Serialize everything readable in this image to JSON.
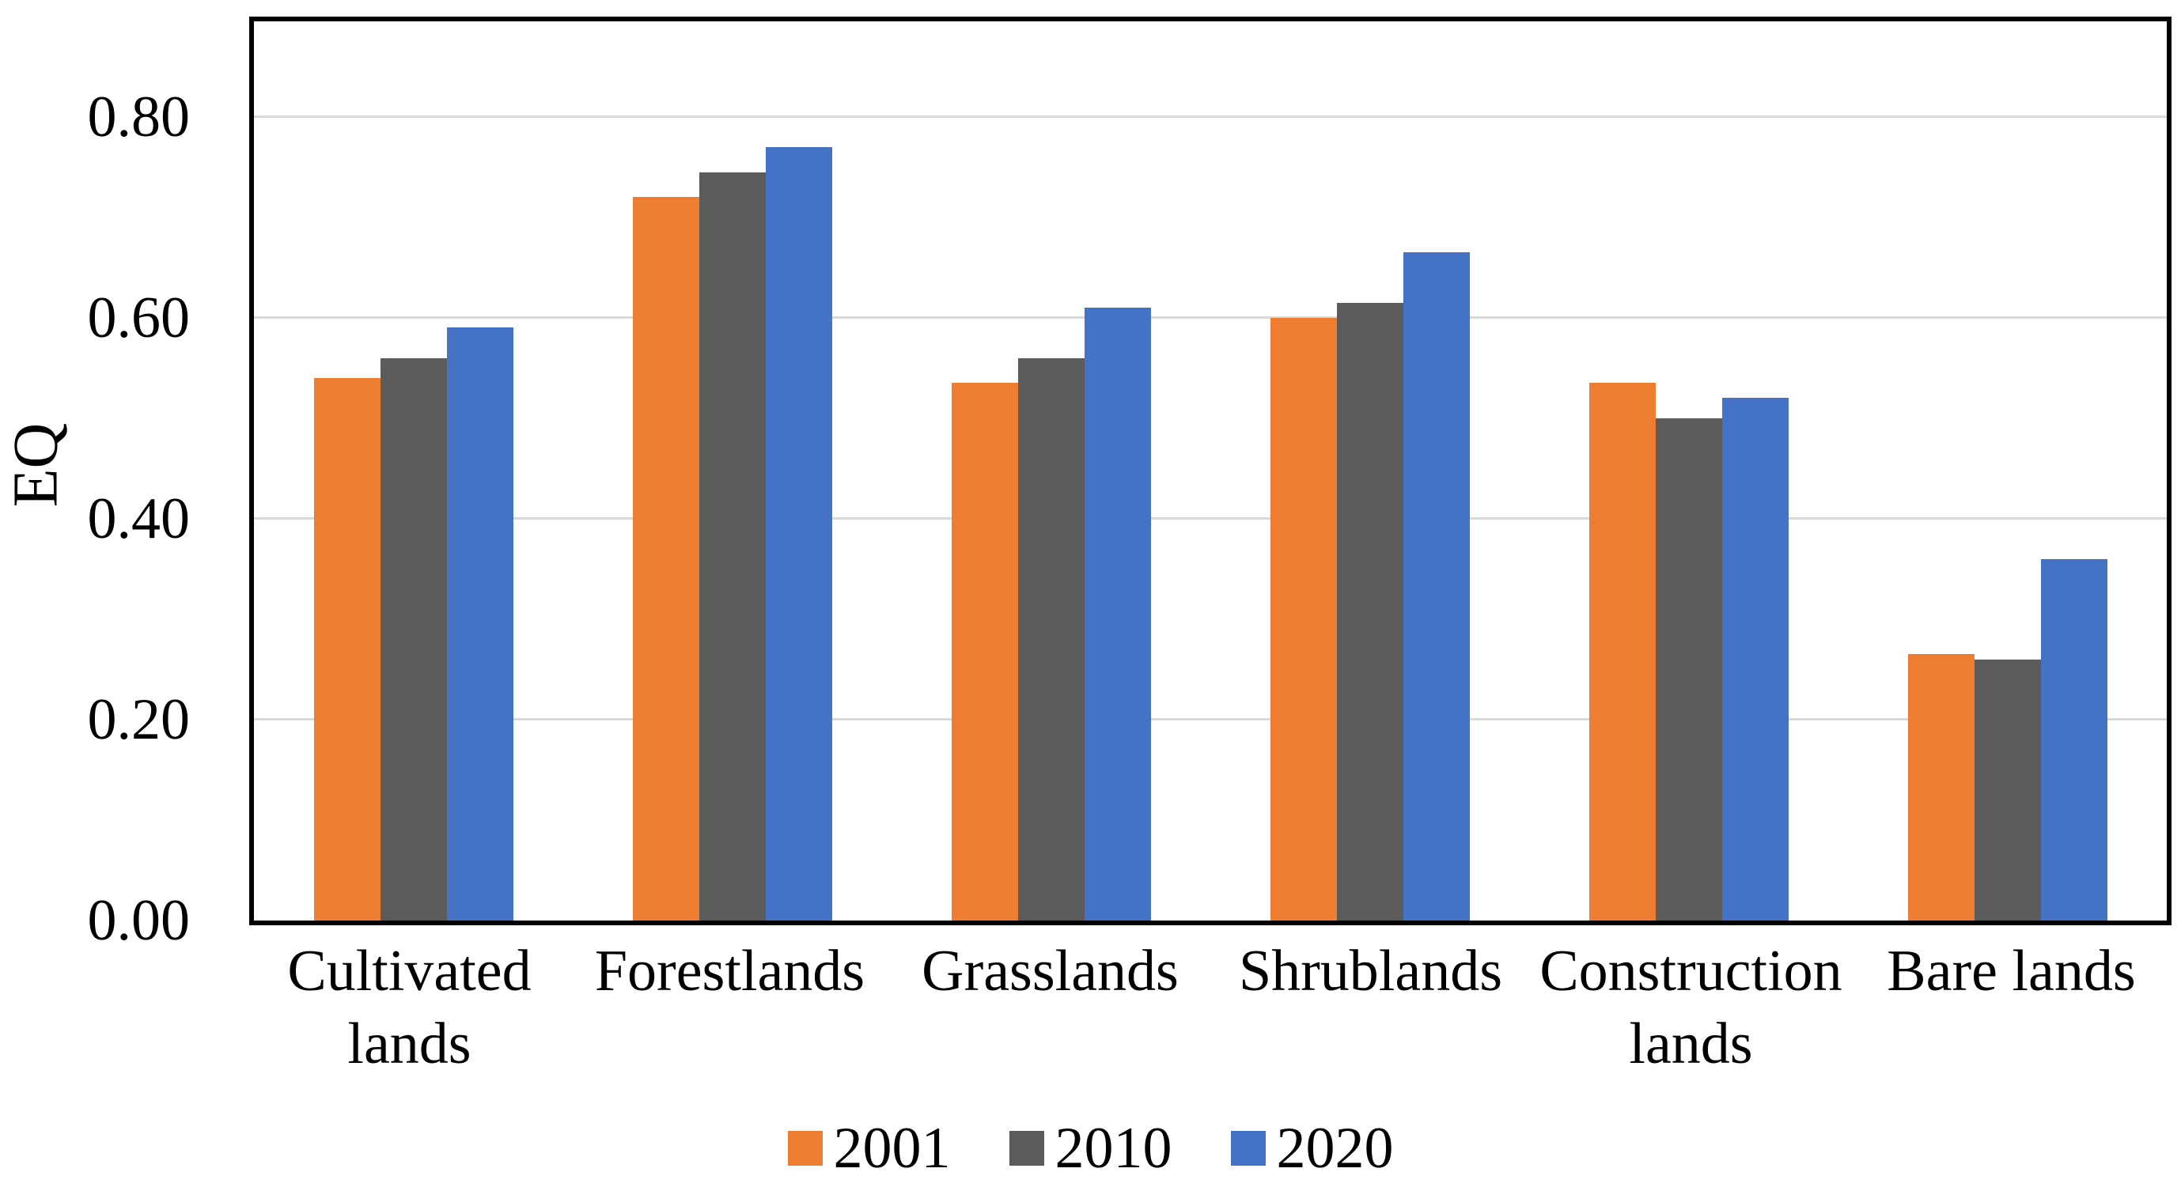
{
  "chart_data": {
    "type": "bar",
    "title": "",
    "xlabel": "",
    "ylabel": "EQ",
    "categories": [
      "Cultivated lands",
      "Forestlands",
      "Grasslands",
      "Shrublands",
      "Construction lands",
      "Bare lands"
    ],
    "categories_display": [
      [
        "Cultivated",
        "lands"
      ],
      [
        "Forestlands"
      ],
      [
        "Grasslands"
      ],
      [
        "Shrublands"
      ],
      [
        "Construction",
        "lands"
      ],
      [
        "Bare lands"
      ]
    ],
    "series": [
      {
        "name": "2001",
        "color": "#ED7D31",
        "values": [
          0.54,
          0.72,
          0.535,
          0.6,
          0.535,
          0.265
        ]
      },
      {
        "name": "2010",
        "color": "#5B5B5B",
        "values": [
          0.56,
          0.745,
          0.56,
          0.615,
          0.5,
          0.26
        ]
      },
      {
        "name": "2020",
        "color": "#4472C4",
        "values": [
          0.59,
          0.77,
          0.61,
          0.665,
          0.52,
          0.36
        ]
      }
    ],
    "y_axis": {
      "min": 0,
      "max": 0.895,
      "ticks": [
        0.0,
        0.2,
        0.4,
        0.6,
        0.8
      ],
      "tick_labels": [
        "0.00",
        "0.20",
        "0.40",
        "0.60",
        "0.80"
      ]
    },
    "grid": true,
    "legend_position": "bottom-center",
    "colors": {
      "gridline": "#d9d9d9",
      "plot_border": "#000000",
      "text": "#000000",
      "background": "#ffffff"
    }
  }
}
